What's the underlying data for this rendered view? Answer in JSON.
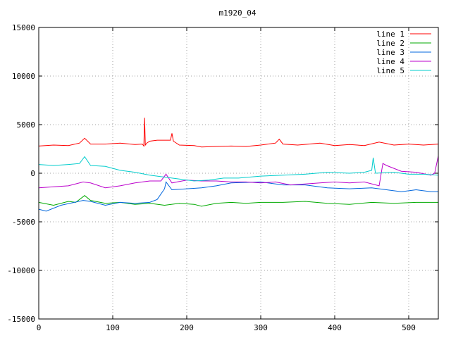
{
  "chart_data": {
    "type": "line",
    "title": "m1920_04",
    "xlabel": "",
    "ylabel": "",
    "xlim": [
      0,
      540
    ],
    "ylim": [
      -15000,
      15000
    ],
    "xticks": [
      0,
      100,
      200,
      300,
      400,
      500
    ],
    "yticks": [
      -15000,
      -10000,
      -5000,
      0,
      5000,
      10000,
      15000
    ],
    "xtick_labels": [
      "0",
      "100",
      "200",
      "300",
      "400",
      "500"
    ],
    "ytick_labels": [
      "-15000",
      "-10000",
      "-5000",
      "0",
      "5000",
      "10000",
      "15000"
    ],
    "grid": true,
    "legend_position": "top-right",
    "series": [
      {
        "name": "line 1",
        "color": "#ff0000",
        "points": [
          [
            0,
            2800
          ],
          [
            20,
            2900
          ],
          [
            40,
            2850
          ],
          [
            55,
            3100
          ],
          [
            62,
            3600
          ],
          [
            70,
            3000
          ],
          [
            90,
            3000
          ],
          [
            110,
            3100
          ],
          [
            130,
            2950
          ],
          [
            140,
            3000
          ],
          [
            142,
            2800
          ],
          [
            143,
            5700
          ],
          [
            144,
            2900
          ],
          [
            146,
            3100
          ],
          [
            150,
            3300
          ],
          [
            160,
            3400
          ],
          [
            170,
            3400
          ],
          [
            178,
            3400
          ],
          [
            180,
            4100
          ],
          [
            182,
            3300
          ],
          [
            190,
            2900
          ],
          [
            210,
            2850
          ],
          [
            220,
            2700
          ],
          [
            240,
            2750
          ],
          [
            260,
            2800
          ],
          [
            280,
            2750
          ],
          [
            300,
            2900
          ],
          [
            320,
            3100
          ],
          [
            325,
            3500
          ],
          [
            330,
            3000
          ],
          [
            350,
            2900
          ],
          [
            380,
            3100
          ],
          [
            400,
            2850
          ],
          [
            420,
            2950
          ],
          [
            440,
            2850
          ],
          [
            460,
            3200
          ],
          [
            480,
            2900
          ],
          [
            500,
            3000
          ],
          [
            520,
            2900
          ],
          [
            540,
            3000
          ]
        ]
      },
      {
        "name": "line 2",
        "color": "#00aa00",
        "points": [
          [
            0,
            -3000
          ],
          [
            20,
            -3300
          ],
          [
            40,
            -2900
          ],
          [
            50,
            -3000
          ],
          [
            62,
            -2300
          ],
          [
            70,
            -2800
          ],
          [
            90,
            -3100
          ],
          [
            110,
            -3000
          ],
          [
            130,
            -3200
          ],
          [
            150,
            -3100
          ],
          [
            170,
            -3300
          ],
          [
            190,
            -3100
          ],
          [
            210,
            -3200
          ],
          [
            220,
            -3400
          ],
          [
            240,
            -3100
          ],
          [
            260,
            -3000
          ],
          [
            280,
            -3100
          ],
          [
            300,
            -3000
          ],
          [
            330,
            -3000
          ],
          [
            360,
            -2900
          ],
          [
            390,
            -3100
          ],
          [
            420,
            -3200
          ],
          [
            450,
            -3000
          ],
          [
            480,
            -3100
          ],
          [
            510,
            -3000
          ],
          [
            540,
            -3000
          ]
        ]
      },
      {
        "name": "line 3",
        "color": "#0066dd",
        "points": [
          [
            0,
            -3700
          ],
          [
            10,
            -3900
          ],
          [
            30,
            -3300
          ],
          [
            60,
            -2800
          ],
          [
            70,
            -2900
          ],
          [
            90,
            -3300
          ],
          [
            110,
            -3000
          ],
          [
            130,
            -3100
          ],
          [
            150,
            -3000
          ],
          [
            160,
            -2700
          ],
          [
            170,
            -1600
          ],
          [
            172,
            -900
          ],
          [
            180,
            -1700
          ],
          [
            200,
            -1600
          ],
          [
            220,
            -1500
          ],
          [
            240,
            -1300
          ],
          [
            260,
            -1000
          ],
          [
            300,
            -900
          ],
          [
            330,
            -1200
          ],
          [
            360,
            -1200
          ],
          [
            390,
            -1500
          ],
          [
            420,
            -1600
          ],
          [
            450,
            -1500
          ],
          [
            470,
            -1700
          ],
          [
            490,
            -1900
          ],
          [
            510,
            -1700
          ],
          [
            530,
            -1900
          ],
          [
            540,
            -1900
          ]
        ]
      },
      {
        "name": "line 4",
        "color": "#bb00cc",
        "points": [
          [
            0,
            -1500
          ],
          [
            20,
            -1400
          ],
          [
            40,
            -1300
          ],
          [
            60,
            -900
          ],
          [
            70,
            -1000
          ],
          [
            90,
            -1500
          ],
          [
            110,
            -1300
          ],
          [
            130,
            -1000
          ],
          [
            150,
            -800
          ],
          [
            165,
            -800
          ],
          [
            172,
            -100
          ],
          [
            180,
            -1000
          ],
          [
            200,
            -700
          ],
          [
            220,
            -800
          ],
          [
            240,
            -800
          ],
          [
            260,
            -900
          ],
          [
            280,
            -900
          ],
          [
            300,
            -1000
          ],
          [
            320,
            -900
          ],
          [
            340,
            -1200
          ],
          [
            360,
            -1100
          ],
          [
            380,
            -1000
          ],
          [
            400,
            -900
          ],
          [
            420,
            -1000
          ],
          [
            440,
            -900
          ],
          [
            460,
            -1300
          ],
          [
            465,
            1000
          ],
          [
            470,
            800
          ],
          [
            490,
            200
          ],
          [
            510,
            100
          ],
          [
            530,
            -200
          ],
          [
            535,
            0
          ],
          [
            540,
            1800
          ]
        ]
      },
      {
        "name": "line 5",
        "color": "#00cccc",
        "points": [
          [
            0,
            900
          ],
          [
            20,
            800
          ],
          [
            40,
            900
          ],
          [
            55,
            1000
          ],
          [
            62,
            1700
          ],
          [
            70,
            800
          ],
          [
            90,
            700
          ],
          [
            110,
            300
          ],
          [
            130,
            100
          ],
          [
            150,
            -200
          ],
          [
            170,
            -400
          ],
          [
            190,
            -600
          ],
          [
            210,
            -800
          ],
          [
            230,
            -700
          ],
          [
            250,
            -500
          ],
          [
            270,
            -500
          ],
          [
            300,
            -300
          ],
          [
            330,
            -200
          ],
          [
            360,
            -100
          ],
          [
            390,
            100
          ],
          [
            420,
            0
          ],
          [
            440,
            100
          ],
          [
            450,
            300
          ],
          [
            452,
            1600
          ],
          [
            455,
            0
          ],
          [
            480,
            100
          ],
          [
            500,
            -100
          ],
          [
            520,
            -100
          ],
          [
            540,
            -200
          ]
        ]
      }
    ]
  }
}
